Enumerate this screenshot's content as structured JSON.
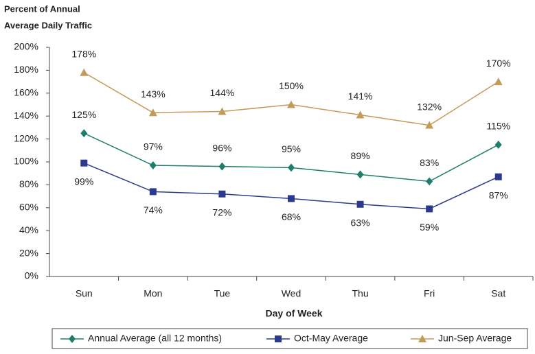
{
  "chart_data": {
    "type": "line",
    "title": [
      "Percent of  Annual",
      "Average Daily  Traffic"
    ],
    "x_label": "Day of Week",
    "categories": [
      "Sun",
      "Mon",
      "Tue",
      "Wed",
      "Thu",
      "Fri",
      "Sat"
    ],
    "series": [
      {
        "name": "Annual Average (all 12 months)",
        "color": "#1e7d6b",
        "marker": "diamond",
        "label_position": "above",
        "values": [
          125,
          97,
          96,
          95,
          89,
          83,
          115
        ],
        "value_labels": [
          "125%",
          "97%",
          "96%",
          "95%",
          "89%",
          "83%",
          "115%"
        ]
      },
      {
        "name": "Oct-May Average",
        "color": "#2b3a8c",
        "marker": "square",
        "label_position": "below",
        "values": [
          99,
          74,
          72,
          68,
          63,
          59,
          87
        ],
        "value_labels": [
          "99%",
          "74%",
          "72%",
          "68%",
          "63%",
          "59%",
          "87%"
        ]
      },
      {
        "name": "Jun-Sep Average",
        "color": "#c49a5a",
        "marker": "triangle",
        "label_position": "above",
        "values": [
          178,
          143,
          144,
          150,
          141,
          132,
          170
        ],
        "value_labels": [
          "178%",
          "143%",
          "144%",
          "150%",
          "141%",
          "132%",
          "170%"
        ]
      }
    ],
    "ylim": [
      0,
      200
    ],
    "yticks": [
      {
        "value": 0,
        "label": "0%"
      },
      {
        "value": 20,
        "label": "20%"
      },
      {
        "value": 40,
        "label": "40%"
      },
      {
        "value": 60,
        "label": "60%"
      },
      {
        "value": 80,
        "label": "80%"
      },
      {
        "value": 100,
        "label": "100%"
      },
      {
        "value": 120,
        "label": "120%"
      },
      {
        "value": 140,
        "label": "140%"
      },
      {
        "value": 160,
        "label": "160%"
      },
      {
        "value": 180,
        "label": "180%"
      },
      {
        "value": 200,
        "label": "200%"
      }
    ],
    "grid": false,
    "legend": "bottom"
  }
}
